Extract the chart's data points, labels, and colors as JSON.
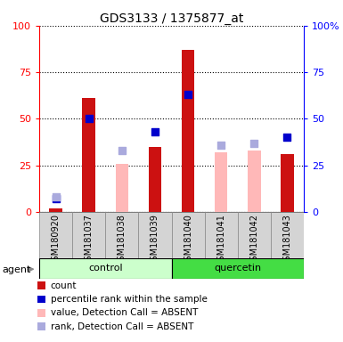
{
  "title": "GDS3133 / 1375877_at",
  "samples": [
    "GSM180920",
    "GSM181037",
    "GSM181038",
    "GSM181039",
    "GSM181040",
    "GSM181041",
    "GSM181042",
    "GSM181043"
  ],
  "count_values": [
    2,
    61,
    0,
    35,
    87,
    0,
    0,
    31
  ],
  "percentile_rank": [
    7,
    50,
    0,
    43,
    63,
    0,
    0,
    40
  ],
  "absent_value": [
    0,
    0,
    26,
    0,
    0,
    32,
    33,
    0
  ],
  "absent_rank": [
    8,
    0,
    33,
    0,
    0,
    36,
    37,
    0
  ],
  "ylim": [
    0,
    100
  ],
  "yticks": [
    0,
    25,
    50,
    75,
    100
  ],
  "bar_color_count": "#cc1111",
  "bar_color_absent_value": "#ffb8b8",
  "dot_color_rank": "#0000cc",
  "dot_color_absent_rank": "#aaaadd",
  "color_control": "#ccffcc",
  "color_quercetin": "#44dd44",
  "color_sample_bg": "#d4d4d4",
  "legend_labels": [
    "count",
    "percentile rank within the sample",
    "value, Detection Call = ABSENT",
    "rank, Detection Call = ABSENT"
  ],
  "legend_colors": [
    "#cc1111",
    "#0000cc",
    "#ffb8b8",
    "#aaaadd"
  ],
  "bar_width": 0.4,
  "dot_size": 40,
  "title_fontsize": 10,
  "tick_fontsize": 8,
  "label_fontsize": 7,
  "legend_fontsize": 7.5
}
